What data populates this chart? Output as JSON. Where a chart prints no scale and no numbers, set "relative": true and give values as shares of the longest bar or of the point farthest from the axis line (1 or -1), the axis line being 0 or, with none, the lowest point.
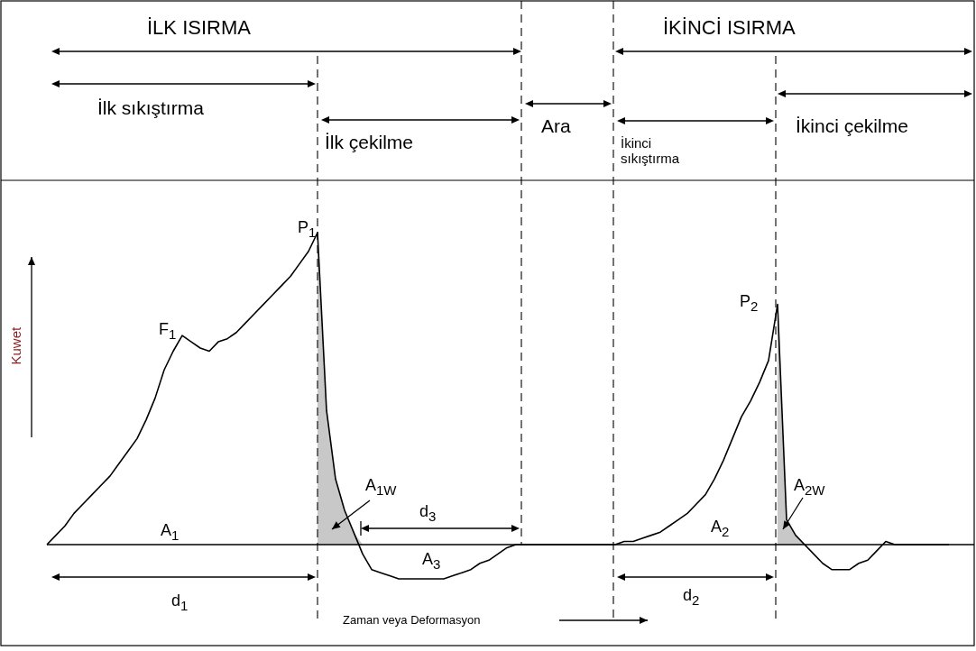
{
  "chart_data": {
    "type": "line",
    "relative": true,
    "tick_labels": false,
    "marker": "none",
    "line_style": "solid",
    "xlabel": "Zaman veya Deformasyon",
    "ylabel": "Kuwet",
    "categories": [
      null,
      null,
      null,
      null,
      null,
      null,
      null,
      null,
      null,
      null,
      null,
      null,
      null,
      null,
      null,
      null,
      null,
      null,
      null,
      null,
      null,
      null,
      null,
      null,
      null,
      null,
      null,
      null,
      null,
      null,
      null,
      null,
      null,
      null,
      null,
      null,
      null,
      null,
      null,
      null,
      null,
      null,
      null,
      null,
      null,
      null,
      null,
      null,
      null,
      null,
      null,
      null,
      null,
      null,
      null,
      null,
      null,
      null,
      null,
      null,
      null,
      null,
      null,
      null,
      null,
      null,
      null,
      null,
      null,
      null,
      null,
      null,
      null,
      null,
      null,
      null,
      null,
      null,
      null,
      null,
      null,
      null,
      null,
      null,
      null,
      null,
      null,
      null,
      null,
      null,
      null,
      null,
      null,
      null,
      null,
      null,
      null,
      null,
      null,
      null,
      null,
      null,
      null
    ],
    "series": [
      {
        "type": "area",
        "color": "#c8c8c8",
        "values": [
          null,
          null,
          null,
          null,
          null,
          null,
          null,
          null,
          null,
          null,
          null,
          null,
          null,
          null,
          null,
          null,
          null,
          null,
          null,
          null,
          null,
          null,
          null,
          null,
          null,
          null,
          null,
          null,
          null,
          null,
          1,
          0.43,
          0.21,
          0.11,
          0.04,
          0,
          null,
          null,
          null,
          null,
          null,
          null,
          null,
          null,
          null,
          null,
          null,
          null,
          null,
          null,
          null,
          null,
          null,
          null,
          null,
          null,
          null,
          null,
          null,
          null,
          null,
          null,
          null,
          null,
          null,
          null,
          null,
          null,
          null,
          null,
          null,
          null,
          null,
          null,
          null,
          null,
          null,
          null,
          null,
          null,
          null,
          0.77,
          0.08,
          0.03,
          0,
          null,
          null,
          null,
          null,
          null,
          null,
          null,
          null,
          null,
          null,
          null,
          null,
          null,
          null,
          null,
          null,
          null,
          null
        ]
      },
      {
        "type": "line",
        "color": "#000000",
        "values": [
          0,
          0.03,
          0.06,
          0.1,
          0.13,
          0.16,
          0.19,
          0.22,
          0.26,
          0.3,
          0.34,
          0.4,
          0.47,
          0.56,
          0.62,
          0.67,
          0.65,
          0.63,
          0.62,
          0.65,
          0.66,
          0.68,
          0.71,
          0.74,
          0.77,
          0.8,
          0.83,
          0.86,
          0.9,
          0.94,
          1,
          0.43,
          0.21,
          0.11,
          0.04,
          -0.03,
          -0.08,
          -0.09,
          -0.1,
          -0.11,
          -0.11,
          -0.11,
          -0.11,
          -0.11,
          -0.11,
          -0.1,
          -0.09,
          -0.08,
          -0.06,
          -0.05,
          -0.03,
          -0.01,
          0,
          0,
          0,
          0,
          0,
          0,
          0,
          0,
          0,
          0,
          0,
          0,
          0.01,
          0.01,
          0.02,
          0.03,
          0.04,
          0.06,
          0.08,
          0.1,
          0.13,
          0.16,
          0.21,
          0.27,
          0.34,
          0.41,
          0.46,
          0.52,
          0.59,
          0.77,
          0.08,
          0.03,
          0,
          -0.03,
          -0.06,
          -0.08,
          -0.08,
          -0.08,
          -0.06,
          -0.05,
          -0.02,
          0.01,
          0,
          0,
          0,
          0,
          0,
          0,
          0,
          null,
          null
        ]
      }
    ],
    "annotations": [
      "İLK ISIRMA",
      "İKİNCİ ISIRMA",
      "İlk sıkıştırma",
      "İlk çekilme",
      "Ara",
      "İkinci\nsıkıştırma",
      "İkinci çekilme",
      "F$_{1}$",
      "P$_{1}$",
      "P$_{2}$",
      "A$_{1}$",
      "A$_{1W}$",
      "d$_{3}$",
      "A$_{3}$",
      "d$_{1}$",
      "A$_{2}$",
      "A$_{2W}$",
      "d$_{2}$"
    ]
  }
}
